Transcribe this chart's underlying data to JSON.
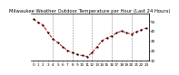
{
  "title": "Milwaukee Weather Outdoor Temperature per Hour (Last 24 Hours)",
  "hours": [
    0,
    1,
    2,
    3,
    4,
    5,
    6,
    7,
    8,
    9,
    10,
    11,
    12,
    13,
    14,
    15,
    16,
    17,
    18,
    19,
    20,
    21,
    22,
    23
  ],
  "temperatures": [
    52,
    49,
    46,
    38,
    32,
    28,
    24,
    20,
    18,
    16,
    15,
    14,
    18,
    24,
    30,
    33,
    35,
    38,
    40,
    38,
    37,
    39,
    41,
    43
  ],
  "line_color": "#cc0000",
  "marker_color": "#000000",
  "bg_color": "#ffffff",
  "grid_color": "#888888",
  "ylim_min": 10,
  "ylim_max": 58,
  "yticks": [
    10,
    20,
    30,
    40,
    50
  ],
  "grid_hours": [
    4,
    8,
    12,
    16,
    20
  ],
  "title_fontsize": 3.8,
  "tick_fontsize": 3.0,
  "ylabel_fontsize": 3.5,
  "line_width": 0.7,
  "marker_size": 1.2
}
